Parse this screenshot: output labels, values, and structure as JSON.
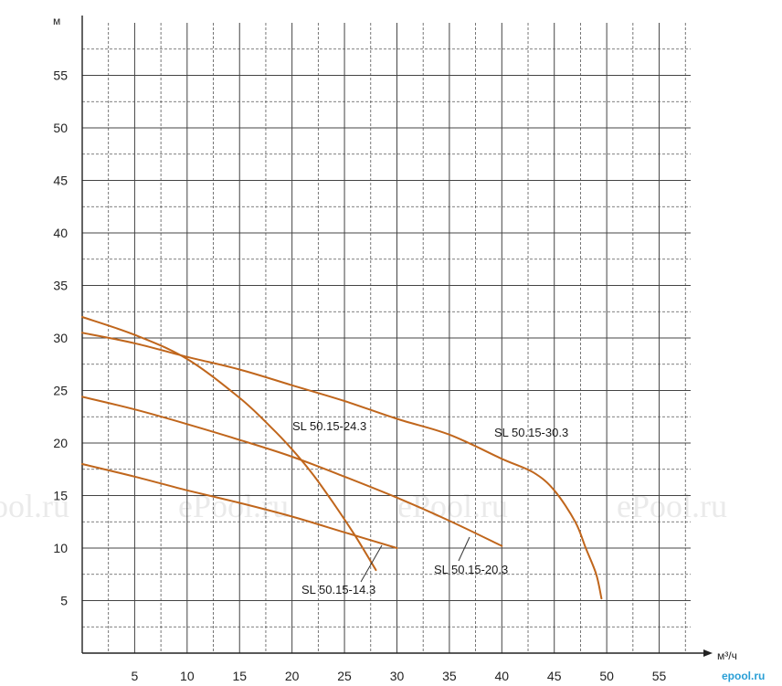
{
  "chart_data": {
    "type": "line",
    "ylabel": "м",
    "xlabel": "м³/ч",
    "xlim": [
      0,
      58
    ],
    "ylim": [
      0,
      60
    ],
    "x_ticks": [
      5,
      10,
      15,
      20,
      25,
      30,
      35,
      40,
      45,
      50,
      55
    ],
    "y_ticks": [
      5,
      10,
      15,
      20,
      25,
      30,
      35,
      40,
      45,
      50,
      55
    ],
    "grid": true,
    "series": [
      {
        "name": "SL 50.15-14.3",
        "color": "#c0661c",
        "x": [
          0,
          5,
          10,
          15,
          20,
          25,
          30
        ],
        "y": [
          18,
          16.8,
          15.5,
          14.3,
          13,
          11.5,
          10
        ]
      },
      {
        "name": "SL 50.15-20.3",
        "color": "#c0661c",
        "x": [
          0,
          5,
          10,
          15,
          20,
          25,
          30,
          35,
          40
        ],
        "y": [
          24.4,
          23.2,
          21.8,
          20.3,
          18.7,
          16.8,
          14.8,
          12.6,
          10.2
        ]
      },
      {
        "name": "SL 50.15-24.3",
        "color": "#c0661c",
        "x": [
          0,
          5,
          10,
          15,
          18,
          20,
          22,
          24,
          26,
          28
        ],
        "y": [
          32,
          30.3,
          28,
          24.3,
          21.5,
          19.4,
          17,
          14.2,
          11.2,
          7.9
        ]
      },
      {
        "name": "SL 50.15-30.3",
        "color": "#c0661c",
        "x": [
          0,
          5,
          10,
          15,
          20,
          25,
          30,
          35,
          40,
          43,
          45,
          47,
          48,
          49,
          49.5
        ],
        "y": [
          30.5,
          29.5,
          28.2,
          27,
          25.5,
          24,
          22.3,
          20.8,
          18.5,
          17.2,
          15.5,
          12.5,
          10,
          7.5,
          5.2
        ]
      }
    ],
    "annotations": [
      {
        "text": "SL 50.15-24.3",
        "series": 2
      },
      {
        "text": "SL 50.15-30.3",
        "series": 3
      },
      {
        "text": "SL 50.15-20.3",
        "series": 1
      },
      {
        "text": "SL 50.15-14.3",
        "series": 0
      }
    ]
  },
  "watermarks": [
    "ePool.ru",
    "ePool.ru",
    "ePool.ru",
    "ePool.ru"
  ],
  "credit": "epool.ru"
}
